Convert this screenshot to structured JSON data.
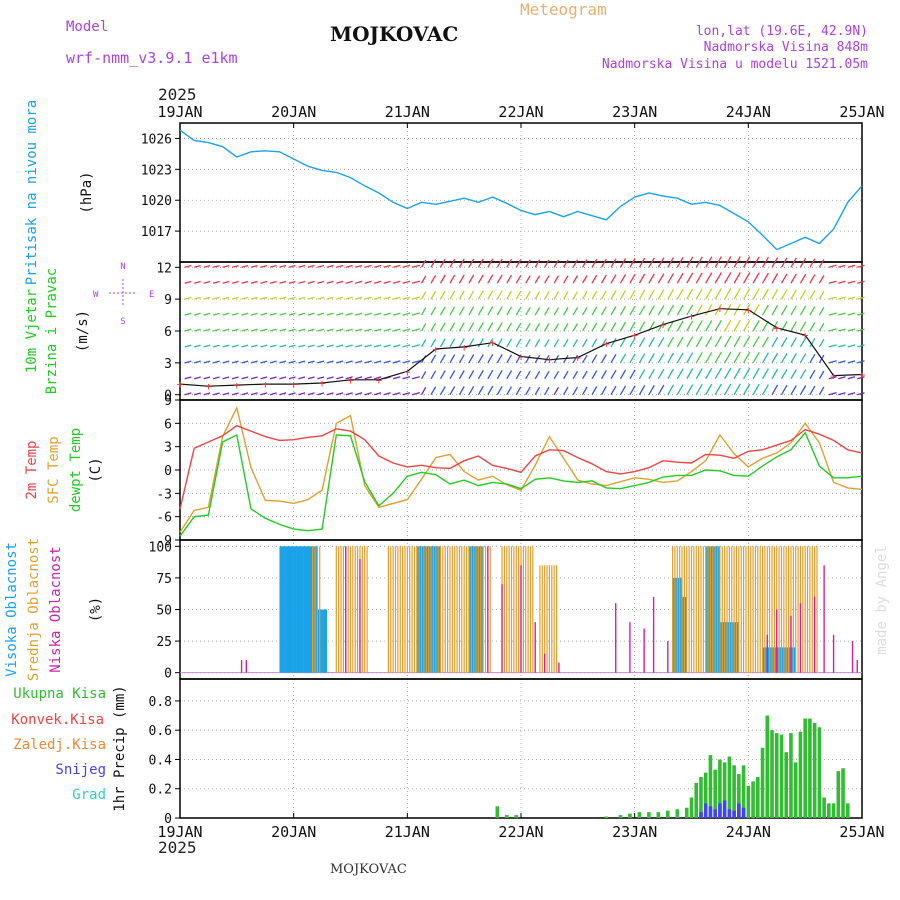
{
  "header": {
    "model_label": "Model",
    "model_name": "wrf-nmm_v3.9.1 e1km",
    "title": "MOJKOVAC",
    "meteogram": "Meteogram",
    "lonlat": "lon,lat (19.6E, 42.9N)",
    "altitude": "Nadmorska Visina 848m",
    "model_altitude": "Nadmorska Visina u modelu 1521.05m",
    "year_top": "2025",
    "year_bottom": "2025",
    "footer_station": "MOJKOVAC",
    "watermark": "made by Angel"
  },
  "colors": {
    "pressure": "#1aa3e8",
    "temp2m": "#ee4444",
    "sfc": "#e0a030",
    "dewpt": "#22cc22",
    "high_cloud": "#1aa3e8",
    "mid_cloud": "#e0a030",
    "low_cloud": "#cc22aa",
    "total_precip": "#33bb33",
    "conv_precip": "#ee4444",
    "frozen_precip": "#ee8833",
    "snow": "#4444ee",
    "graupel": "#33cccc",
    "header_purple": "#aa44dd",
    "meteogram_orange": "#e8b070"
  },
  "chart_data": {
    "type": "line",
    "x_axis": {
      "ticks": [
        "19JAN",
        "20JAN",
        "21JAN",
        "22JAN",
        "23JAN",
        "24JAN",
        "25JAN"
      ],
      "start": "2025-01-19T00",
      "end": "2025-01-25T00"
    },
    "panels": [
      {
        "id": "pressure",
        "labels": [
          "Pritisak na nivou mora"
        ],
        "unit": "(hPa)",
        "ylim": [
          1014,
          1027.5
        ],
        "yticks": [
          1017,
          1020,
          1023,
          1026
        ],
        "series": [
          {
            "name": "Pritisak na nivou mora",
            "x": [
              0,
              3,
              6,
              9,
              12,
              15,
              18,
              21,
              24,
              27,
              30,
              33,
              36,
              39,
              42,
              45,
              48,
              51,
              54,
              57,
              60,
              63,
              66,
              69,
              72,
              75,
              78,
              81,
              84,
              87,
              90,
              93,
              96,
              99,
              102,
              105,
              108,
              111,
              114,
              117,
              120,
              123,
              126,
              129,
              132,
              135,
              138,
              141,
              144
            ],
            "values": [
              1026.8,
              1025.8,
              1025.6,
              1025.2,
              1024.2,
              1024.7,
              1024.8,
              1024.7,
              1024.0,
              1023.3,
              1022.9,
              1022.7,
              1022.2,
              1021.4,
              1020.7,
              1019.8,
              1019.2,
              1019.8,
              1019.6,
              1019.9,
              1020.2,
              1019.8,
              1020.3,
              1019.7,
              1019.0,
              1018.6,
              1018.9,
              1018.4,
              1018.9,
              1018.5,
              1018.1,
              1019.4,
              1020.3,
              1020.7,
              1020.4,
              1020.2,
              1019.6,
              1019.8,
              1019.5,
              1018.7,
              1017.9,
              1016.6,
              1015.2,
              1015.8,
              1016.4,
              1015.8,
              1017.2,
              1019.8,
              1021.4
            ]
          }
        ]
      },
      {
        "id": "wind",
        "labels": [
          "10m Vjetar",
          "Brzina i Pravac"
        ],
        "unit": "(m/s)",
        "compass": {
          "n": "N",
          "w": "W",
          "e": "E",
          "s": "S"
        },
        "ylim": [
          -0.5,
          12.5
        ],
        "yticks": [
          0,
          3,
          6,
          9,
          12
        ],
        "series": [
          {
            "name": "Brzina",
            "x": [
              0,
              6,
              12,
              18,
              24,
              30,
              36,
              42,
              48,
              54,
              60,
              66,
              72,
              78,
              84,
              90,
              96,
              102,
              108,
              114,
              120,
              126,
              132,
              138,
              144
            ],
            "values": [
              1.0,
              0.8,
              0.9,
              1.0,
              1.0,
              1.1,
              1.4,
              1.4,
              2.2,
              4.3,
              4.5,
              4.9,
              3.6,
              3.3,
              3.5,
              4.8,
              5.6,
              6.6,
              7.4,
              8.1,
              8.0,
              6.3,
              5.6,
              1.8,
              1.9
            ]
          }
        ]
      },
      {
        "id": "temperature",
        "labels": [
          "2m Temp",
          "SFC Temp",
          "dewpt Temp"
        ],
        "unit": "(C)",
        "ylim": [
          -9,
          9
        ],
        "yticks": [
          -9,
          -6,
          -3,
          0,
          3,
          6,
          9
        ],
        "series": [
          {
            "name": "2m Temp",
            "x": [
              0,
              3,
              6,
              9,
              12,
              15,
              18,
              21,
              24,
              27,
              30,
              33,
              36,
              39,
              42,
              45,
              48,
              51,
              54,
              57,
              60,
              63,
              66,
              69,
              72,
              75,
              78,
              81,
              84,
              87,
              90,
              93,
              96,
              99,
              102,
              105,
              108,
              111,
              114,
              117,
              120,
              123,
              126,
              129,
              132,
              135,
              138,
              141,
              144
            ],
            "values": [
              -5.0,
              2.8,
              3.6,
              4.4,
              5.7,
              5.0,
              4.3,
              3.8,
              3.9,
              4.2,
              4.4,
              5.3,
              5.0,
              3.9,
              1.8,
              0.9,
              0.4,
              0.6,
              0.3,
              0.2,
              1.2,
              1.8,
              0.6,
              0.2,
              -0.3,
              1.8,
              2.6,
              2.5,
              1.6,
              0.8,
              -0.2,
              -0.5,
              -0.2,
              0.3,
              1.2,
              1.0,
              0.9,
              2.0,
              1.9,
              1.5,
              2.4,
              2.6,
              3.2,
              3.8,
              5.2,
              4.6,
              3.8,
              2.6,
              2.2
            ]
          },
          {
            "name": "SFC Temp",
            "x": [
              0,
              3,
              6,
              9,
              12,
              15,
              18,
              21,
              24,
              27,
              30,
              33,
              36,
              39,
              42,
              45,
              48,
              51,
              54,
              57,
              60,
              63,
              66,
              69,
              72,
              75,
              78,
              81,
              84,
              87,
              90,
              93,
              96,
              99,
              102,
              105,
              108,
              111,
              114,
              117,
              120,
              123,
              126,
              129,
              132,
              135,
              138,
              141,
              144
            ],
            "values": [
              -8.0,
              -5.2,
              -4.8,
              4.3,
              8.0,
              0.3,
              -3.9,
              -4.0,
              -4.3,
              -3.8,
              -2.6,
              6.0,
              7.0,
              -2.0,
              -4.8,
              -4.3,
              -3.8,
              -1.2,
              1.6,
              2.0,
              -0.2,
              -1.3,
              -0.8,
              -1.9,
              -2.6,
              0.6,
              4.3,
              1.5,
              -1.3,
              -1.8,
              -2.0,
              -1.5,
              -1.0,
              -1.2,
              -1.6,
              -1.4,
              -0.2,
              1.2,
              4.5,
              2.1,
              0.4,
              1.5,
              2.2,
              3.5,
              6.0,
              3.5,
              -1.6,
              -2.3,
              -2.5
            ]
          },
          {
            "name": "dewpt Temp",
            "x": [
              0,
              3,
              6,
              9,
              12,
              15,
              18,
              21,
              24,
              27,
              30,
              33,
              36,
              39,
              42,
              45,
              48,
              51,
              54,
              57,
              60,
              63,
              66,
              69,
              72,
              75,
              78,
              81,
              84,
              87,
              90,
              93,
              96,
              99,
              102,
              105,
              108,
              111,
              114,
              117,
              120,
              123,
              126,
              129,
              132,
              135,
              138,
              141,
              144
            ],
            "values": [
              -8.5,
              -6.0,
              -5.8,
              3.6,
              4.5,
              -5.0,
              -6.2,
              -7.0,
              -7.6,
              -7.8,
              -7.6,
              4.5,
              4.4,
              -1.5,
              -4.6,
              -3.0,
              -0.8,
              -0.3,
              -0.6,
              -1.8,
              -1.3,
              -2.0,
              -1.6,
              -1.8,
              -2.4,
              -1.2,
              -1.0,
              -1.4,
              -1.6,
              -1.4,
              -2.3,
              -2.4,
              -2.0,
              -1.6,
              -0.9,
              -0.7,
              -0.7,
              0.0,
              -0.1,
              -0.7,
              -0.8,
              0.5,
              1.7,
              2.6,
              4.8,
              0.5,
              -1.0,
              -1.0,
              -0.8
            ]
          }
        ]
      },
      {
        "id": "clouds",
        "labels": [
          "Visoka Oblacnost",
          "Srednja Oblacnost",
          "Niska Oblacnost"
        ],
        "unit": "(%)",
        "ylim": [
          -5,
          105
        ],
        "yticks": [
          0,
          25,
          50,
          75,
          100
        ],
        "series": [
          {
            "name": "Visoka Oblacnost",
            "blocks": [
              {
                "from": 21,
                "to": 29,
                "value": 100
              },
              {
                "from": 29,
                "to": 31,
                "value": 50
              },
              {
                "from": 50,
                "to": 55,
                "value": 100
              },
              {
                "from": 61,
                "to": 64,
                "value": 100
              },
              {
                "from": 104,
                "to": 106,
                "value": 75
              },
              {
                "from": 106,
                "to": 107,
                "value": 60
              },
              {
                "from": 111,
                "to": 114,
                "value": 100
              },
              {
                "from": 114,
                "to": 118,
                "value": 40
              },
              {
                "from": 123,
                "to": 130,
                "value": 20
              }
            ]
          },
          {
            "name": "Srednja Oblacnost",
            "blocks": [
              {
                "from": 28,
                "to": 30,
                "value": 100
              },
              {
                "from": 33,
                "to": 40,
                "value": 100
              },
              {
                "from": 44,
                "to": 52,
                "value": 100
              },
              {
                "from": 52,
                "to": 66,
                "value": 100
              },
              {
                "from": 68,
                "to": 75,
                "value": 100
              },
              {
                "from": 76,
                "to": 80,
                "value": 85
              },
              {
                "from": 104,
                "to": 130,
                "value": 100
              },
              {
                "from": 130,
                "to": 135,
                "value": 100
              }
            ]
          },
          {
            "name": "Niska Oblacnost",
            "spikes": [
              {
                "x": 13,
                "v": 10
              },
              {
                "x": 14,
                "v": 10
              },
              {
                "x": 35,
                "v": 100
              },
              {
                "x": 38,
                "v": 90
              },
              {
                "x": 65,
                "v": 100
              },
              {
                "x": 68,
                "v": 70
              },
              {
                "x": 72,
                "v": 85
              },
              {
                "x": 75,
                "v": 40
              },
              {
                "x": 77,
                "v": 15
              },
              {
                "x": 80,
                "v": 8
              },
              {
                "x": 92,
                "v": 55
              },
              {
                "x": 95,
                "v": 40
              },
              {
                "x": 98,
                "v": 35
              },
              {
                "x": 100,
                "v": 60
              },
              {
                "x": 103,
                "v": 25
              },
              {
                "x": 124,
                "v": 30
              },
              {
                "x": 126,
                "v": 50
              },
              {
                "x": 129,
                "v": 45
              },
              {
                "x": 131,
                "v": 55
              },
              {
                "x": 134,
                "v": 60
              },
              {
                "x": 136,
                "v": 85
              },
              {
                "x": 138,
                "v": 30
              },
              {
                "x": 142,
                "v": 25
              },
              {
                "x": 143,
                "v": 10
              }
            ]
          }
        ]
      },
      {
        "id": "precip",
        "labels": [
          "Ukupna Kisa",
          "Konvek.Kisa",
          "Zaledj.Kisa",
          "Snijeg",
          "Grad"
        ],
        "unit": "1hr Precip (mm)",
        "ylim": [
          0,
          0.95
        ],
        "yticks": [
          0,
          0.2,
          0.4,
          0.6,
          0.8
        ],
        "series": [
          {
            "name": "Ukupna Kisa",
            "x": [
              67,
              69,
              71,
              90,
              93,
              95,
              97,
              99,
              101,
              103,
              105,
              107,
              108,
              109,
              110,
              111,
              112,
              113,
              114,
              115,
              116,
              117,
              118,
              119,
              120,
              121,
              122,
              123,
              124,
              125,
              126,
              127,
              128,
              129,
              130,
              131,
              132,
              133,
              134,
              135,
              136,
              137,
              138,
              139,
              140,
              141
            ],
            "values": [
              0.08,
              0.02,
              0.02,
              0.01,
              0.02,
              0.03,
              0.04,
              0.04,
              0.04,
              0.05,
              0.06,
              0.07,
              0.14,
              0.24,
              0.28,
              0.31,
              0.43,
              0.33,
              0.4,
              0.38,
              0.42,
              0.36,
              0.3,
              0.36,
              0.22,
              0.25,
              0.28,
              0.48,
              0.7,
              0.6,
              0.58,
              0.57,
              0.45,
              0.58,
              0.38,
              0.59,
              0.68,
              0.68,
              0.65,
              0.62,
              0.14,
              0.1,
              0.1,
              0.32,
              0.34,
              0.1
            ]
          },
          {
            "name": "Snijeg",
            "x": [
              110,
              111,
              112,
              113,
              114,
              115,
              116,
              117,
              118,
              119
            ],
            "values": [
              0.04,
              0.1,
              0.08,
              0.06,
              0.1,
              0.12,
              0.06,
              0.05,
              0.1,
              0.07
            ]
          }
        ]
      }
    ]
  }
}
